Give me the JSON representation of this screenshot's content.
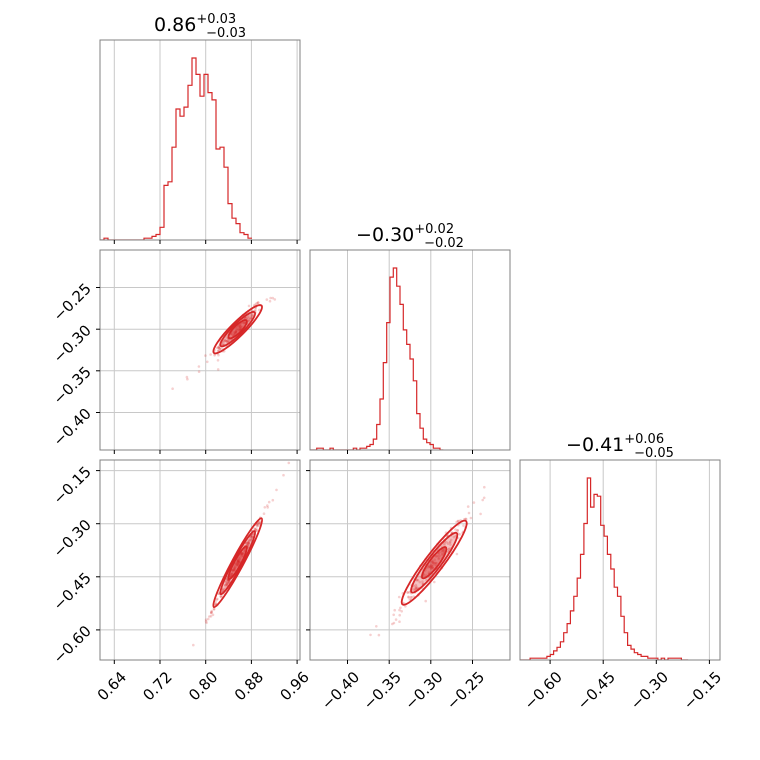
{
  "chart_data": {
    "type": "corner",
    "color": "#d62728",
    "grid": true,
    "parameters": [
      {
        "index": 0,
        "title": {
          "median": "0.86",
          "plus": "+0.03",
          "minus": "−0.03"
        },
        "range": [
          0.615,
          0.965
        ],
        "ticks": [
          0.64,
          0.72,
          0.8,
          0.88,
          0.96
        ],
        "tick_labels": [
          "0.64",
          "0.72",
          "0.80",
          "0.88",
          "0.96"
        ]
      },
      {
        "index": 1,
        "title": {
          "median": "−0.30",
          "plus": "+0.02",
          "minus": "−0.02"
        },
        "range": [
          -0.445,
          -0.205
        ],
        "ticks": [
          -0.4,
          -0.35,
          -0.3,
          -0.25
        ],
        "tick_labels": [
          "−0.40",
          "−0.35",
          "−0.30",
          "−0.25"
        ]
      },
      {
        "index": 2,
        "title": {
          "median": "−0.41",
          "plus": "+0.06",
          "minus": "−0.05"
        },
        "range": [
          -0.685,
          -0.12
        ],
        "ticks": [
          -0.6,
          -0.45,
          -0.3,
          -0.15
        ],
        "tick_labels": [
          "−0.60",
          "−0.45",
          "−0.30",
          "−0.15"
        ]
      }
    ],
    "histograms": [
      {
        "param": 0,
        "bin_start": 0.615,
        "bin_width": 0.007,
        "counts": [
          0,
          1,
          0,
          0,
          0,
          0,
          0,
          0,
          0,
          0,
          0,
          1,
          1,
          2,
          3,
          7,
          30,
          32,
          51,
          72,
          68,
          73,
          85,
          100,
          91,
          79,
          91,
          81,
          77,
          50,
          51,
          40,
          20,
          12,
          9,
          4,
          3,
          1
        ]
      },
      {
        "param": 1,
        "bin_start": -0.445,
        "bin_width": 0.004,
        "counts": [
          0,
          0,
          1,
          1,
          0,
          0,
          1,
          0,
          0,
          0,
          0,
          0,
          0,
          1,
          0,
          1,
          1,
          2,
          3,
          6,
          14,
          28,
          48,
          70,
          95,
          100,
          90,
          80,
          66,
          58,
          50,
          38,
          20,
          12,
          6,
          4,
          3,
          1,
          1,
          0
        ]
      },
      {
        "param": 2,
        "bin_start": -0.685,
        "bin_width": 0.0095,
        "counts": [
          0,
          0,
          0,
          1,
          1,
          1,
          1,
          1,
          2,
          3,
          5,
          7,
          10,
          15,
          20,
          27,
          35,
          45,
          58,
          75,
          100,
          84,
          91,
          90,
          74,
          68,
          58,
          50,
          40,
          35,
          24,
          15,
          8,
          6,
          4,
          3,
          2,
          2,
          1,
          1,
          1,
          0,
          1,
          0,
          1,
          1,
          1,
          1,
          0,
          0
        ]
      }
    ],
    "pairs": [
      {
        "x_param": 0,
        "y_param": 1,
        "slope": 0.68,
        "x_center": 0.856,
        "y_center": -0.3,
        "x_sd": 0.022,
        "scatter_sd": 0.006
      },
      {
        "x_param": 0,
        "y_param": 2,
        "slope": 3.0,
        "x_center": 0.856,
        "y_center": -0.41,
        "x_sd": 0.022,
        "scatter_sd": 0.007
      },
      {
        "x_param": 1,
        "y_param": 2,
        "slope": 3.1,
        "x_center": -0.296,
        "y_center": -0.41,
        "x_sd": 0.02,
        "scatter_sd": 0.02
      }
    ]
  }
}
